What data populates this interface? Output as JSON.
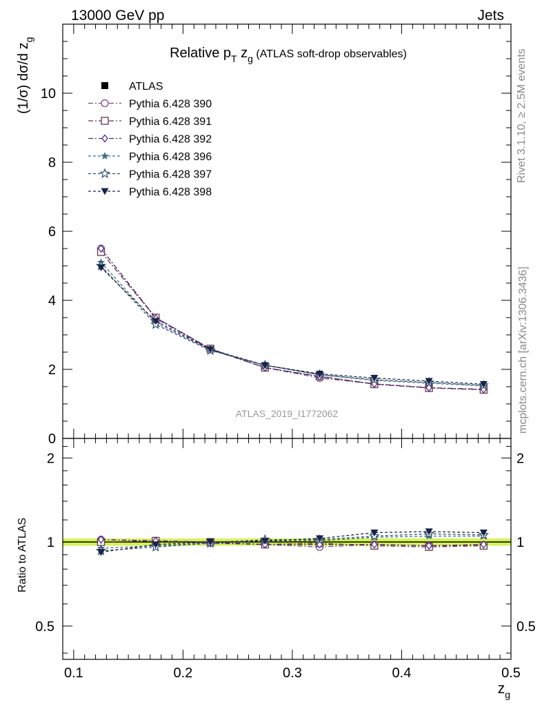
{
  "header": {
    "left": "13000 GeV pp",
    "right": "Jets"
  },
  "title": {
    "main": "Relative p",
    "sub": "T",
    "var": " z",
    "var_sub": "g",
    "tail": " (ATLAS soft-drop observables)"
  },
  "side_labels": {
    "rivet": "Rivet 3.1.10, ≥ 2.5M events",
    "mcplots": "mcplots.cern.ch [arXiv:1306.3436]"
  },
  "analysis_id": "ATLAS_2019_I1772062",
  "colors": {
    "ATLAS": "#000000",
    "Pythia 6.428 390": "#7b4a86",
    "Pythia 6.428 391": "#6b3048",
    "Pythia 6.428 392": "#4b2a7a",
    "Pythia 6.428 396": "#3d6d86",
    "Pythia 6.428 397": "#2f4f6b",
    "Pythia 6.428 398": "#1a2348",
    "band": "#d4f25a"
  },
  "chart_data": [
    {
      "type": "line",
      "panel": "main",
      "ylabel": "(1/σ) dσ/d z",
      "ylabel_sub": "g",
      "xlim": [
        0.09,
        0.5
      ],
      "ylim": [
        0,
        12
      ],
      "y_ticks": [
        0,
        2,
        4,
        6,
        8,
        10
      ],
      "y_tick_labels": [
        "0",
        "2",
        "4",
        "6",
        "8",
        "10"
      ],
      "legend_position": "top-left",
      "x": [
        0.125,
        0.175,
        0.225,
        0.275,
        0.325,
        0.375,
        0.425,
        0.475
      ],
      "series": [
        {
          "name": "ATLAS",
          "marker": "square-filled",
          "values": [
            5.4,
            3.45,
            2.6,
            2.1,
            1.82,
            1.62,
            1.52,
            1.45
          ]
        },
        {
          "name": "Pythia 6.428 390",
          "marker": "circle-open",
          "values": [
            5.5,
            3.5,
            2.6,
            2.05,
            1.75,
            1.58,
            1.47,
            1.42
          ]
        },
        {
          "name": "Pythia 6.428 391",
          "marker": "square-open",
          "values": [
            5.4,
            3.5,
            2.6,
            2.05,
            1.8,
            1.57,
            1.46,
            1.41
          ]
        },
        {
          "name": "Pythia 6.428 392",
          "marker": "diamond-open",
          "values": [
            5.5,
            3.48,
            2.58,
            2.05,
            1.79,
            1.58,
            1.47,
            1.42
          ]
        },
        {
          "name": "Pythia 6.428 396",
          "marker": "star-filled",
          "values": [
            5.1,
            3.35,
            2.56,
            2.12,
            1.84,
            1.68,
            1.6,
            1.52
          ]
        },
        {
          "name": "Pythia 6.428 397",
          "marker": "star-open",
          "values": [
            5.0,
            3.3,
            2.55,
            2.12,
            1.85,
            1.7,
            1.62,
            1.54
          ]
        },
        {
          "name": "Pythia 6.428 398",
          "marker": "triangle-down-filled",
          "values": [
            4.95,
            3.4,
            2.58,
            2.12,
            1.87,
            1.75,
            1.66,
            1.57
          ]
        }
      ]
    },
    {
      "type": "line",
      "panel": "ratio",
      "ylabel": "Ratio to ATLAS",
      "xlabel": "z",
      "xlabel_sub": "g",
      "xlim": [
        0.09,
        0.5
      ],
      "ylim": [
        0.38,
        2.35
      ],
      "y_scale": "log",
      "y_ticks": [
        0.5,
        1,
        2
      ],
      "y_tick_labels": [
        "0.5",
        "1",
        "2"
      ],
      "x_ticks": [
        0.1,
        0.2,
        0.3,
        0.4,
        0.5
      ],
      "x_tick_labels": [
        "0.1",
        "0.2",
        "0.3",
        "0.4",
        "0.5"
      ],
      "band": [
        0.97,
        1.03
      ],
      "x": [
        0.125,
        0.175,
        0.225,
        0.275,
        0.325,
        0.375,
        0.425,
        0.475
      ],
      "series": [
        {
          "name": "Pythia 6.428 390",
          "marker": "circle-open",
          "values": [
            1.02,
            1.01,
            1.0,
            0.98,
            0.96,
            0.98,
            0.97,
            0.97
          ]
        },
        {
          "name": "Pythia 6.428 391",
          "marker": "square-open",
          "values": [
            1.0,
            1.01,
            1.0,
            0.98,
            0.99,
            0.97,
            0.96,
            0.97
          ]
        },
        {
          "name": "Pythia 6.428 392",
          "marker": "diamond-open",
          "values": [
            1.02,
            1.01,
            0.99,
            0.98,
            0.98,
            0.98,
            0.97,
            0.98
          ]
        },
        {
          "name": "Pythia 6.428 396",
          "marker": "star-filled",
          "values": [
            0.95,
            0.97,
            0.99,
            1.01,
            1.01,
            1.04,
            1.05,
            1.05
          ]
        },
        {
          "name": "Pythia 6.428 397",
          "marker": "star-open",
          "values": [
            0.93,
            0.96,
            0.99,
            1.02,
            1.02,
            1.05,
            1.07,
            1.06
          ]
        },
        {
          "name": "Pythia 6.428 398",
          "marker": "triangle-down-filled",
          "values": [
            0.92,
            0.98,
            1.0,
            1.01,
            1.03,
            1.08,
            1.09,
            1.08
          ]
        }
      ]
    }
  ]
}
